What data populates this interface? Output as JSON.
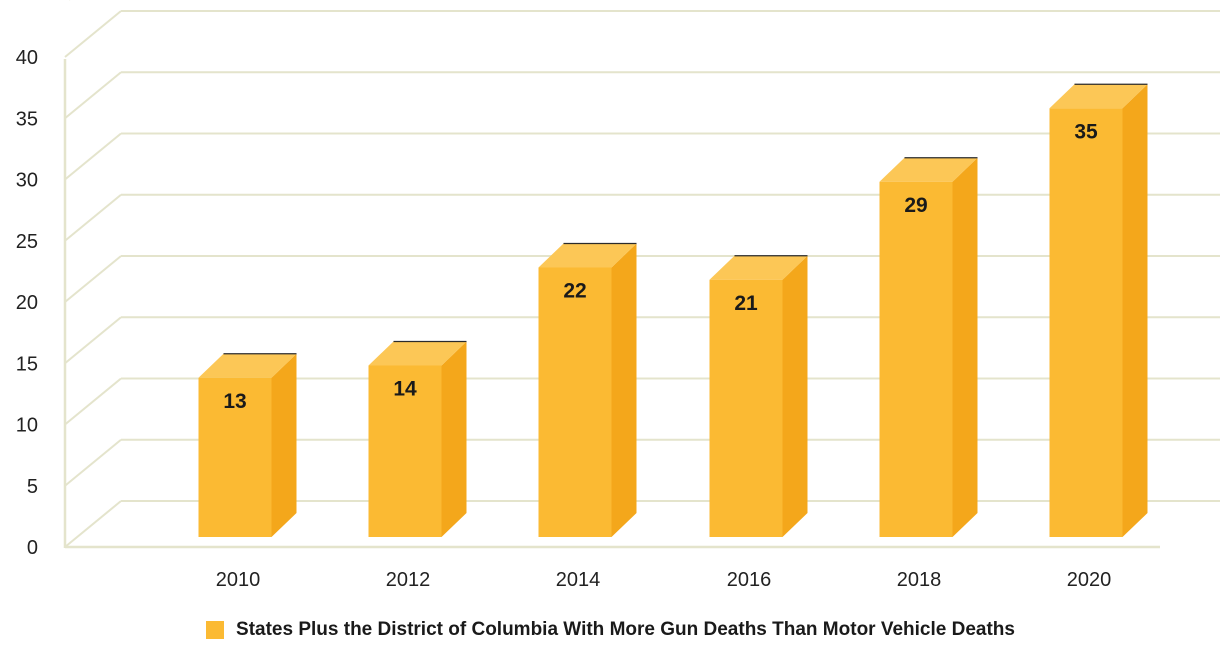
{
  "chart_data": {
    "type": "bar",
    "categories": [
      "2010",
      "2012",
      "2014",
      "2016",
      "2018",
      "2020"
    ],
    "series": [
      {
        "name": "States Plus the District of Columbia With More Gun Deaths Than Motor Vehicle Deaths",
        "values": [
          13,
          14,
          22,
          21,
          29,
          35
        ]
      }
    ],
    "data_labels": [
      "13",
      "14",
      "22",
      "21",
      "29",
      "35"
    ],
    "ylim": [
      0,
      40
    ],
    "yticks": [
      "0",
      "5",
      "10",
      "15",
      "20",
      "25",
      "30",
      "35",
      "40"
    ],
    "grid": true,
    "style": "3d",
    "legend_position": "bottom-center",
    "colors": {
      "front": "#FBBA33",
      "side": "#F4A71B",
      "top": "#FCC756",
      "grid": "#E4E4CC"
    }
  }
}
